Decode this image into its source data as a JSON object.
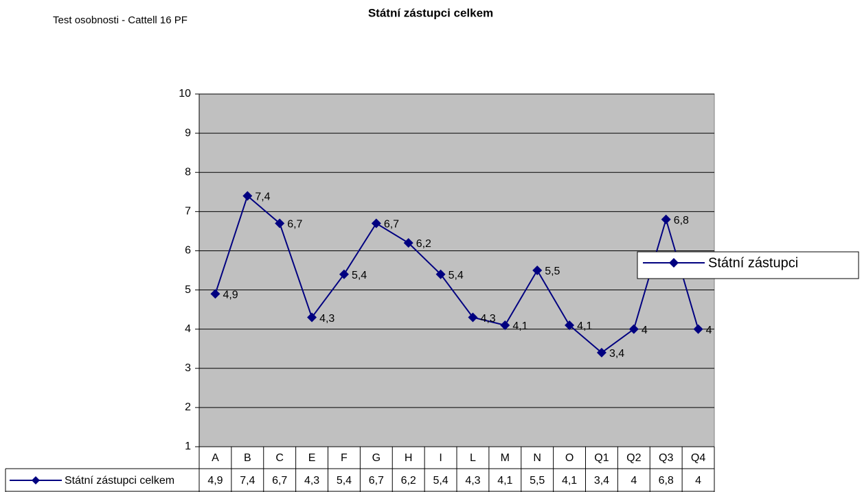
{
  "chart_data": {
    "type": "line",
    "title": "Státní zástupci celkem",
    "subtitle": "Test osobnosti - Cattell 16 PF",
    "table_row_label": "Státní zástupci celkem",
    "categories": [
      "A",
      "B",
      "C",
      "E",
      "F",
      "G",
      "H",
      "I",
      "L",
      "M",
      "N",
      "O",
      "Q1",
      "Q2",
      "Q3",
      "Q4"
    ],
    "series": [
      {
        "name": "Státní zástupci",
        "color": "#000080",
        "values": [
          4.9,
          7.4,
          6.7,
          4.3,
          5.4,
          6.7,
          6.2,
          5.4,
          4.3,
          4.1,
          5.5,
          4.1,
          3.4,
          4,
          6.8,
          4
        ],
        "value_labels": [
          "4,9",
          "7,4",
          "6,7",
          "4,3",
          "5,4",
          "6,7",
          "6,2",
          "5,4",
          "4,3",
          "4,1",
          "5,5",
          "4,1",
          "3,4",
          "4",
          "6,8",
          "4"
        ]
      }
    ],
    "ylim": [
      1,
      10
    ],
    "yticks": [
      1,
      2,
      3,
      4,
      5,
      6,
      7,
      8,
      9,
      10
    ],
    "grid": true,
    "legend": "right",
    "plot_background": "#c0c0c0"
  }
}
